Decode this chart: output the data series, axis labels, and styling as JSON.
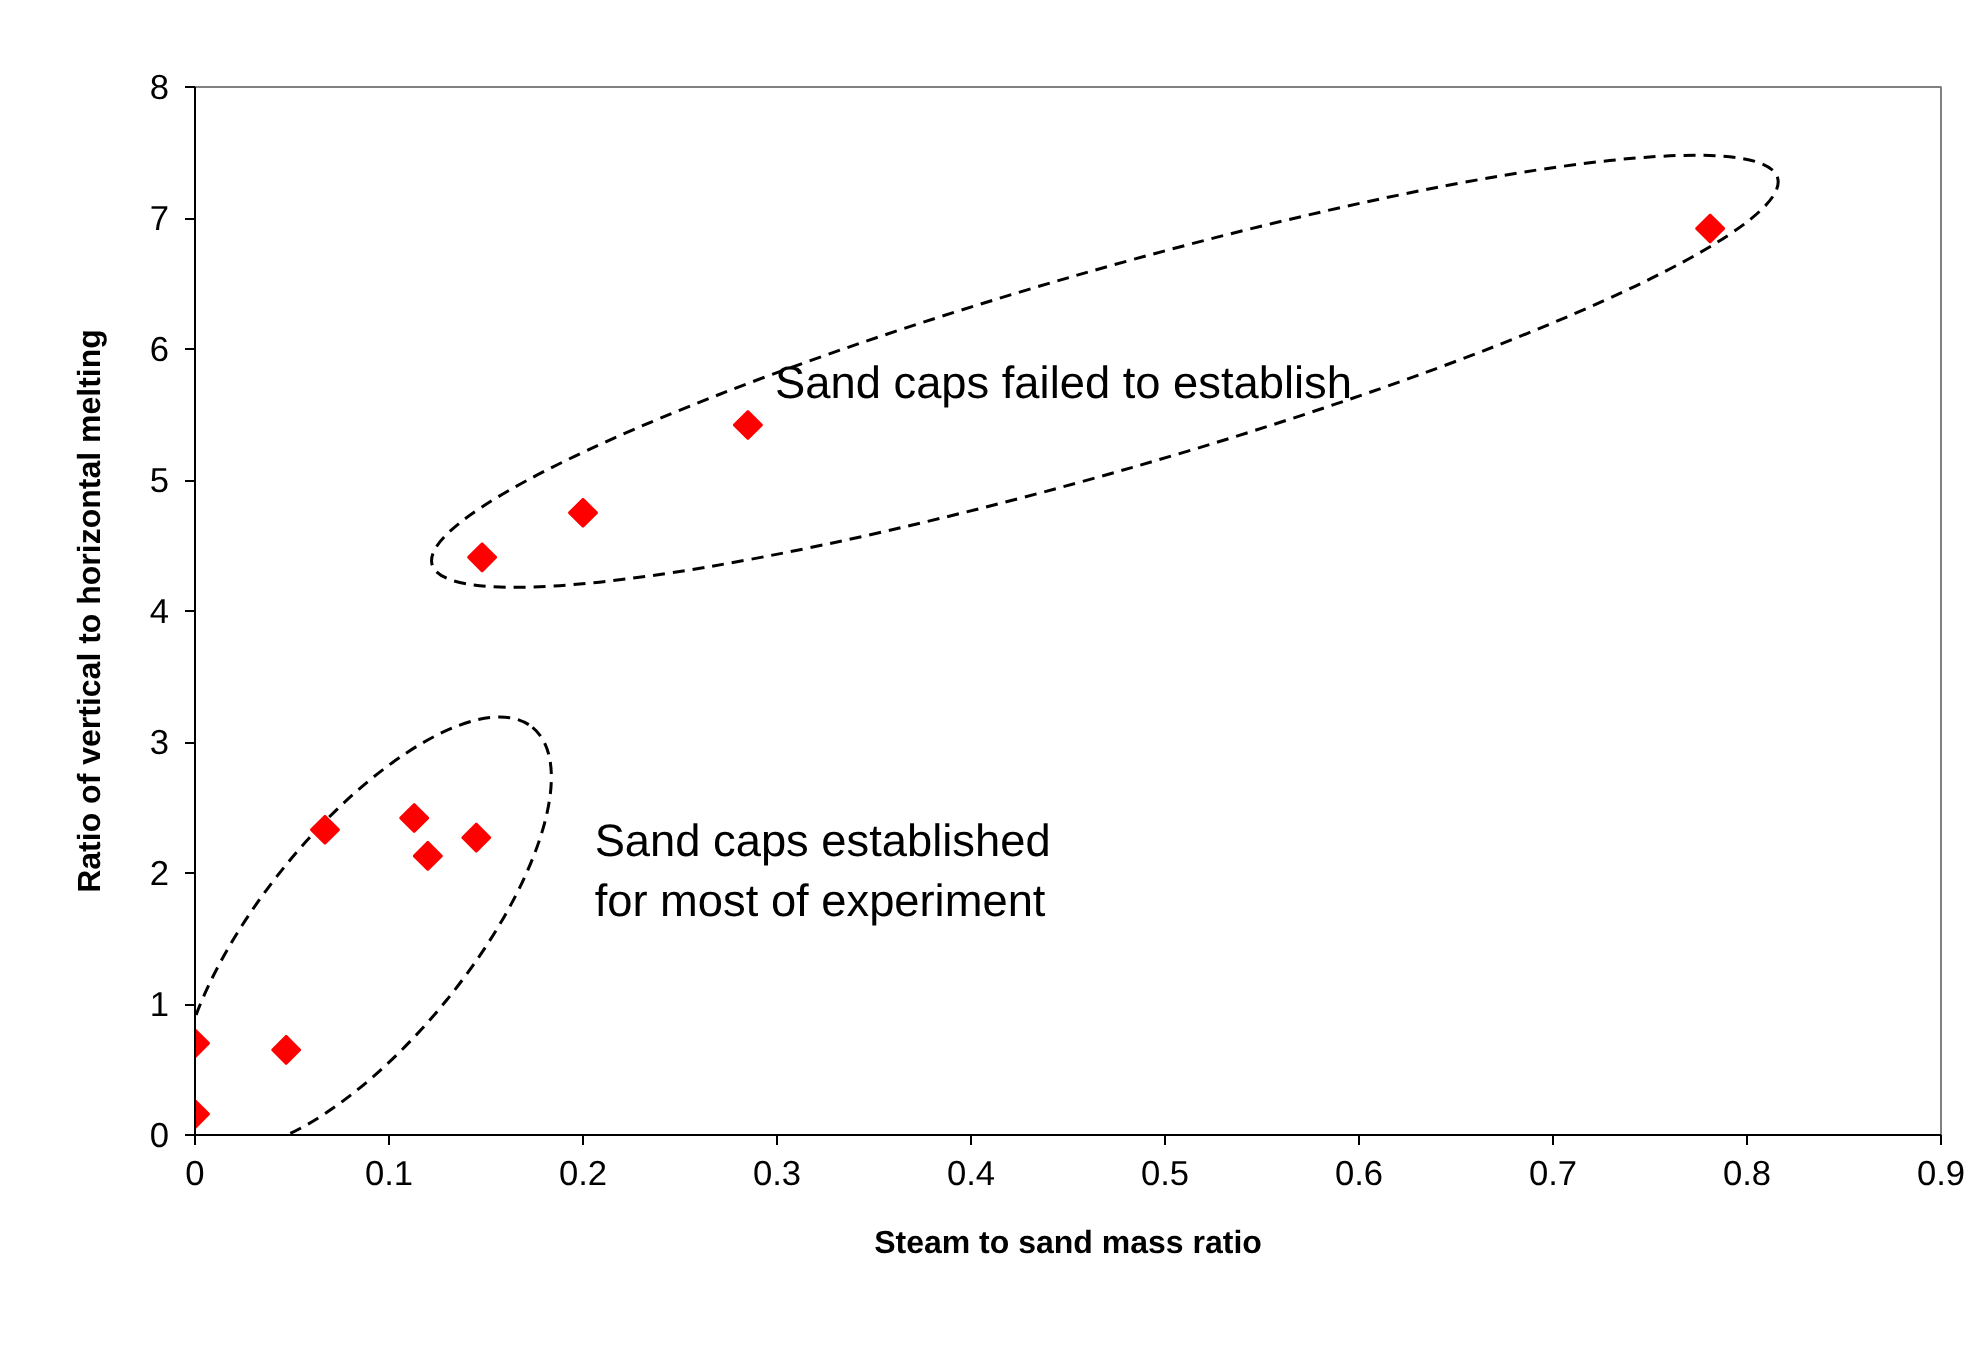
{
  "chart_data": {
    "type": "scatter",
    "xlabel": "Steam to sand mass ratio",
    "ylabel": "Ratio of vertical to horizontal melting",
    "x": [
      0,
      0,
      0.047,
      0.067,
      0.113,
      0.12,
      0.145,
      0.148,
      0.2,
      0.285,
      0.781
    ],
    "series": [
      {
        "color": "#ff0000",
        "values": [
          0.7,
          0.16,
          0.65,
          2.33,
          2.42,
          2.13,
          2.27,
          4.41,
          4.75,
          5.42,
          6.92
        ]
      }
    ],
    "marker": "diamond",
    "xlim": [
      0,
      0.9
    ],
    "xticks": [
      0,
      0.1,
      0.2,
      0.3,
      0.4,
      0.5,
      0.6,
      0.7,
      0.8,
      0.9
    ],
    "ylim": [
      0,
      8
    ],
    "yticks": [
      0,
      1,
      2,
      3,
      4,
      5,
      6,
      7,
      8
    ],
    "grid": false,
    "annotations": [
      "Sand caps failed to establish",
      "Sand caps established\nfor most of experiment"
    ]
  }
}
